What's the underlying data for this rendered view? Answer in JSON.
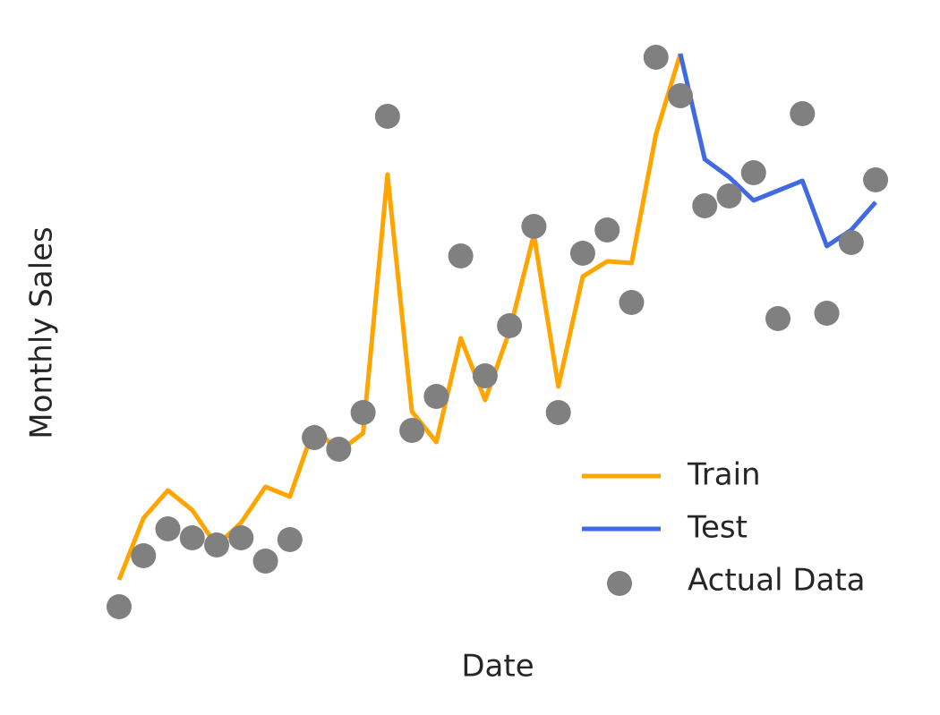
{
  "chart_data": {
    "type": "line",
    "x_label": "Date",
    "y_label": "Monthly Sales",
    "categories": [
      null,
      null,
      null,
      null,
      null,
      null,
      null,
      null,
      null,
      null,
      null,
      null,
      null,
      null,
      null,
      null,
      null,
      null,
      null,
      null,
      null,
      null,
      null,
      null,
      null,
      null,
      null,
      null,
      null,
      null,
      null,
      null
    ],
    "ylim": [
      0,
      670
    ],
    "legend": "lower right",
    "series": [
      {
        "name": "Train",
        "type": "line",
        "color": "#ffa500",
        "values": [
          62,
          131,
          162,
          140,
          100,
          126,
          166,
          155,
          233,
          205,
          226,
          515,
          250,
          216,
          332,
          263,
          340,
          448,
          278,
          401,
          418,
          416,
          560,
          650,
          null,
          null,
          null,
          null,
          null,
          null,
          null,
          null
        ]
      },
      {
        "name": "Test",
        "type": "line",
        "color": "#4169e1",
        "values": [
          null,
          null,
          null,
          null,
          null,
          null,
          null,
          null,
          null,
          null,
          null,
          null,
          null,
          null,
          null,
          null,
          null,
          null,
          null,
          null,
          null,
          null,
          null,
          650,
          532,
          512,
          486,
          497,
          508,
          435,
          453,
          484
        ]
      },
      {
        "name": "Actual Data",
        "type": "scatter",
        "color": "#808080",
        "values": [
          32,
          89,
          119,
          109,
          101,
          109,
          83,
          107,
          221,
          208,
          249,
          580,
          229,
          267,
          424,
          290,
          346,
          457,
          249,
          427,
          453,
          372,
          646,
          603,
          480,
          491,
          517,
          354,
          583,
          360,
          439,
          509
        ]
      }
    ]
  }
}
